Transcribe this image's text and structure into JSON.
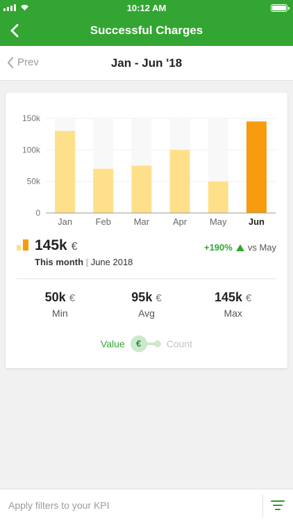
{
  "status_bar": {
    "time": "10:12 AM"
  },
  "header": {
    "title": "Successful Charges"
  },
  "period_nav": {
    "prev_label": "Prev",
    "period": "Jan - Jun '18"
  },
  "chart_data": {
    "type": "bar",
    "categories": [
      "Jan",
      "Feb",
      "Mar",
      "Apr",
      "May",
      "Jun"
    ],
    "values": [
      130,
      70,
      75,
      100,
      50,
      145
    ],
    "ylim": [
      0,
      150
    ],
    "yticks": [
      "0",
      "50k",
      "100k",
      "150k"
    ],
    "highlight_index": 5,
    "grid": true,
    "colors": {
      "bar": "#ffe08a",
      "highlight": "#f79b0f",
      "bar_background": "#f8f8f8"
    }
  },
  "kpi": {
    "value": "145k",
    "unit": "€",
    "period_label": "This month",
    "period_value": "June 2018",
    "change_pct": "+190%",
    "change_text": "vs May"
  },
  "stats": [
    {
      "value": "50k",
      "unit": "€",
      "label": "Min"
    },
    {
      "value": "95k",
      "unit": "€",
      "label": "Avg"
    },
    {
      "value": "145k",
      "unit": "€",
      "label": "Max"
    }
  ],
  "toggle": {
    "left_label": "Value",
    "right_label": "Count",
    "knob_symbol": "€"
  },
  "footer": {
    "filter_text": "Apply filters to your KPI"
  },
  "colors": {
    "primary": "#33a532",
    "accent": "#f79b0f"
  },
  "icons": {
    "back": "chevron-left-icon",
    "prev": "chevron-left-icon",
    "filter": "filter-icon"
  }
}
